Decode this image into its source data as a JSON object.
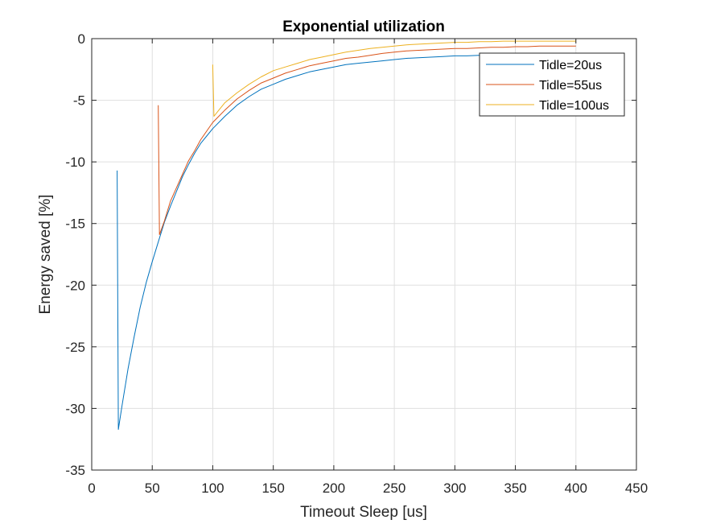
{
  "chart_data": {
    "type": "line",
    "title": "Exponential utilization",
    "xlabel": "Timeout Sleep [us]",
    "ylabel": "Energy saved [%]",
    "xlim": [
      0,
      450
    ],
    "ylim": [
      -35,
      0
    ],
    "xticks": [
      0,
      50,
      100,
      150,
      200,
      250,
      300,
      350,
      400,
      450
    ],
    "yticks": [
      0,
      -5,
      -10,
      -15,
      -20,
      -25,
      -30,
      -35
    ],
    "grid": true,
    "legend_position": "top-right",
    "series": [
      {
        "name": "Tidle=20us",
        "color": "#0072BD",
        "x": [
          21,
          22,
          25,
          30,
          35,
          40,
          45,
          50,
          55,
          60,
          65,
          70,
          75,
          80,
          85,
          90,
          95,
          100,
          110,
          120,
          130,
          140,
          150,
          160,
          170,
          180,
          190,
          200,
          210,
          220,
          230,
          240,
          250,
          260,
          270,
          280,
          290,
          300,
          310,
          320,
          330,
          340,
          350,
          360,
          370,
          380,
          390,
          400
        ],
        "y": [
          -10.7,
          -31.7,
          -29.8,
          -26.8,
          -24.2,
          -21.8,
          -19.8,
          -18.1,
          -16.5,
          -14.9,
          -13.6,
          -12.4,
          -11.2,
          -10.2,
          -9.3,
          -8.5,
          -7.9,
          -7.3,
          -6.3,
          -5.4,
          -4.7,
          -4.1,
          -3.7,
          -3.3,
          -3.0,
          -2.7,
          -2.5,
          -2.3,
          -2.1,
          -2.0,
          -1.9,
          -1.8,
          -1.7,
          -1.6,
          -1.55,
          -1.5,
          -1.45,
          -1.4,
          -1.4,
          -1.35,
          -1.3,
          -1.3,
          -1.3,
          -1.3,
          -1.3,
          -1.3,
          -1.3,
          -1.3
        ]
      },
      {
        "name": "Tidle=55us",
        "color": "#D95319",
        "x": [
          55,
          56,
          60,
          65,
          70,
          75,
          80,
          85,
          90,
          95,
          100,
          110,
          120,
          130,
          140,
          150,
          160,
          170,
          180,
          190,
          200,
          210,
          220,
          230,
          240,
          250,
          260,
          270,
          280,
          290,
          300,
          310,
          320,
          330,
          340,
          350,
          360,
          370,
          380,
          390,
          400
        ],
        "y": [
          -5.4,
          -15.9,
          -14.8,
          -13.2,
          -12.1,
          -11.0,
          -9.9,
          -9.1,
          -8.2,
          -7.5,
          -6.8,
          -5.8,
          -4.9,
          -4.2,
          -3.6,
          -3.2,
          -2.8,
          -2.5,
          -2.2,
          -2.0,
          -1.8,
          -1.6,
          -1.5,
          -1.35,
          -1.2,
          -1.1,
          -1.0,
          -0.95,
          -0.9,
          -0.85,
          -0.8,
          -0.8,
          -0.75,
          -0.7,
          -0.7,
          -0.65,
          -0.65,
          -0.6,
          -0.6,
          -0.6,
          -0.6
        ]
      },
      {
        "name": "Tidle=100us",
        "color": "#EDB120",
        "x": [
          100,
          101,
          105,
          110,
          120,
          130,
          140,
          150,
          160,
          170,
          180,
          190,
          200,
          210,
          220,
          230,
          240,
          250,
          260,
          270,
          280,
          290,
          300,
          310,
          320,
          330,
          340,
          350,
          360,
          370,
          380,
          390,
          400
        ],
        "y": [
          -2.1,
          -6.3,
          -5.8,
          -5.2,
          -4.4,
          -3.7,
          -3.1,
          -2.6,
          -2.3,
          -2.0,
          -1.7,
          -1.5,
          -1.3,
          -1.1,
          -0.95,
          -0.8,
          -0.7,
          -0.6,
          -0.5,
          -0.45,
          -0.4,
          -0.35,
          -0.3,
          -0.3,
          -0.25,
          -0.25,
          -0.2,
          -0.2,
          -0.2,
          -0.2,
          -0.2,
          -0.2,
          -0.2
        ]
      }
    ]
  }
}
